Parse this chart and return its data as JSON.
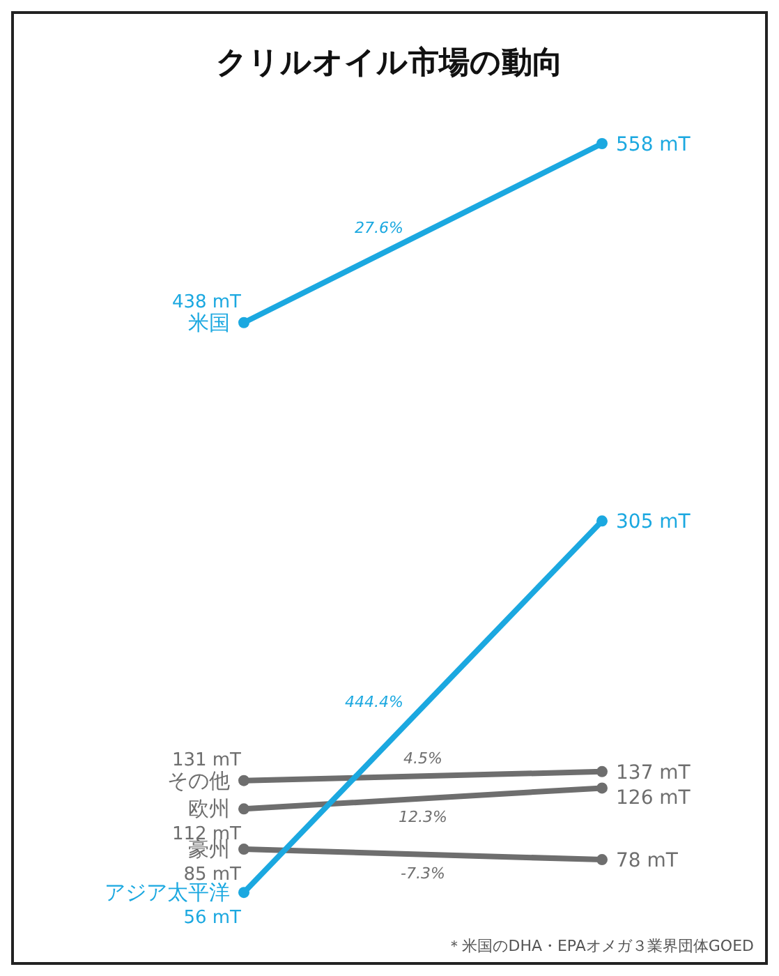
{
  "chart_data": {
    "type": "line",
    "title": "クリルオイル市場の動向",
    "categories": [
      null,
      null
    ],
    "marker": "circle",
    "line_style": "solid",
    "series": [
      {
        "name": "米国",
        "color": "#1ba8e0",
        "values": [
          438,
          558
        ],
        "value_labels": [
          "438 mT",
          "558 mT"
        ]
      },
      {
        "name": "その他",
        "color": "#6e6e6e",
        "values": [
          131,
          137
        ],
        "value_labels": [
          "131 mT",
          "137 mT"
        ]
      },
      {
        "name": "欧州",
        "color": "#6e6e6e",
        "values": [
          112,
          126
        ],
        "value_labels": [
          "112 mT",
          "126 mT"
        ]
      },
      {
        "name": "豪州",
        "color": "#6e6e6e",
        "values": [
          85,
          78
        ],
        "value_labels": [
          "85 mT",
          "78 mT"
        ]
      },
      {
        "name": "アジア太平洋",
        "color": "#1ba8e0",
        "values": [
          56,
          305
        ],
        "value_labels": [
          "56 mT",
          "305 mT"
        ]
      }
    ],
    "annotations": [
      "27.6%",
      "4.5%",
      "12.3%",
      "-7.3%",
      "444.4%",
      "＊米国のDHA・EPAオメガ３業界団体GOED"
    ]
  }
}
